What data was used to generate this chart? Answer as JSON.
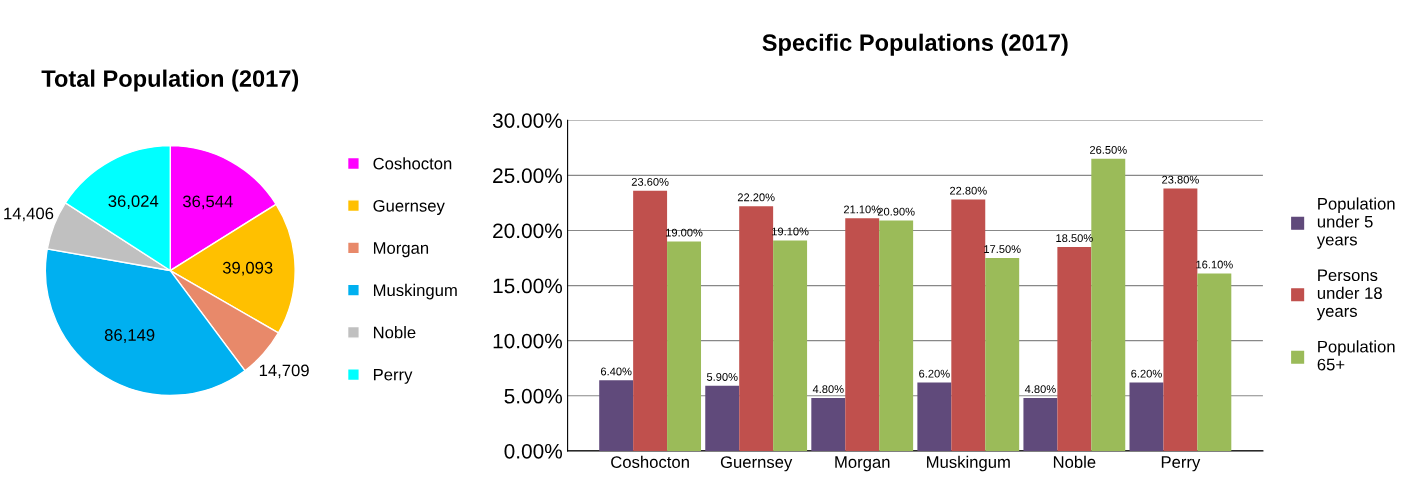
{
  "chart_data": [
    {
      "type": "pie",
      "title": "Total Population (2017)",
      "categories": [
        "Coshocton",
        "Guernsey",
        "Morgan",
        "Muskingum",
        "Noble",
        "Perry"
      ],
      "values": [
        36544,
        39093,
        14709,
        86149,
        14406,
        36024
      ],
      "value_labels": [
        "36,544",
        "39,093",
        "14,709",
        "86,149",
        "14,406",
        "36,024"
      ],
      "colors": [
        "#ff00ff",
        "#ffc000",
        "#e8896a",
        "#00b0f0",
        "#c0c0c0",
        "#00ffff"
      ],
      "legend": "right"
    },
    {
      "type": "bar",
      "title": "Specific Populations (2017)",
      "categories": [
        "Coshocton",
        "Guernsey",
        "Morgan",
        "Muskingum",
        "Noble",
        "Perry"
      ],
      "series": [
        {
          "name": "Population under 5 years",
          "color": "#604a7b",
          "values": [
            6.4,
            5.9,
            4.8,
            6.2,
            4.8,
            6.2
          ],
          "value_labels": [
            "6.40%",
            "5.90%",
            "4.80%",
            "6.20%",
            "4.80%",
            "6.20%"
          ]
        },
        {
          "name": "Persons under 18 years",
          "color": "#c0504d",
          "values": [
            23.6,
            22.2,
            21.1,
            22.8,
            18.5,
            23.8
          ],
          "value_labels": [
            "23.60%",
            "22.20%",
            "21.10%",
            "22.80%",
            "18.50%",
            "23.80%"
          ]
        },
        {
          "name": "Population 65+",
          "color": "#9bbb59",
          "values": [
            19.0,
            19.1,
            20.9,
            17.5,
            26.5,
            16.1
          ],
          "value_labels": [
            "19.00%",
            "19.10%",
            "20.90%",
            "17.50%",
            "26.50%",
            "16.10%"
          ]
        }
      ],
      "ylim": [
        0,
        30
      ],
      "yticks": [
        {
          "value": 0,
          "label": "0.00%"
        },
        {
          "value": 5,
          "label": "5.00%"
        },
        {
          "value": 10,
          "label": "10.00%"
        },
        {
          "value": 15,
          "label": "15.00%"
        },
        {
          "value": 20,
          "label": "20.00%"
        },
        {
          "value": 25,
          "label": "25.00%"
        },
        {
          "value": 30,
          "label": "30.00%"
        }
      ],
      "grid": "y",
      "legend": "right"
    }
  ]
}
